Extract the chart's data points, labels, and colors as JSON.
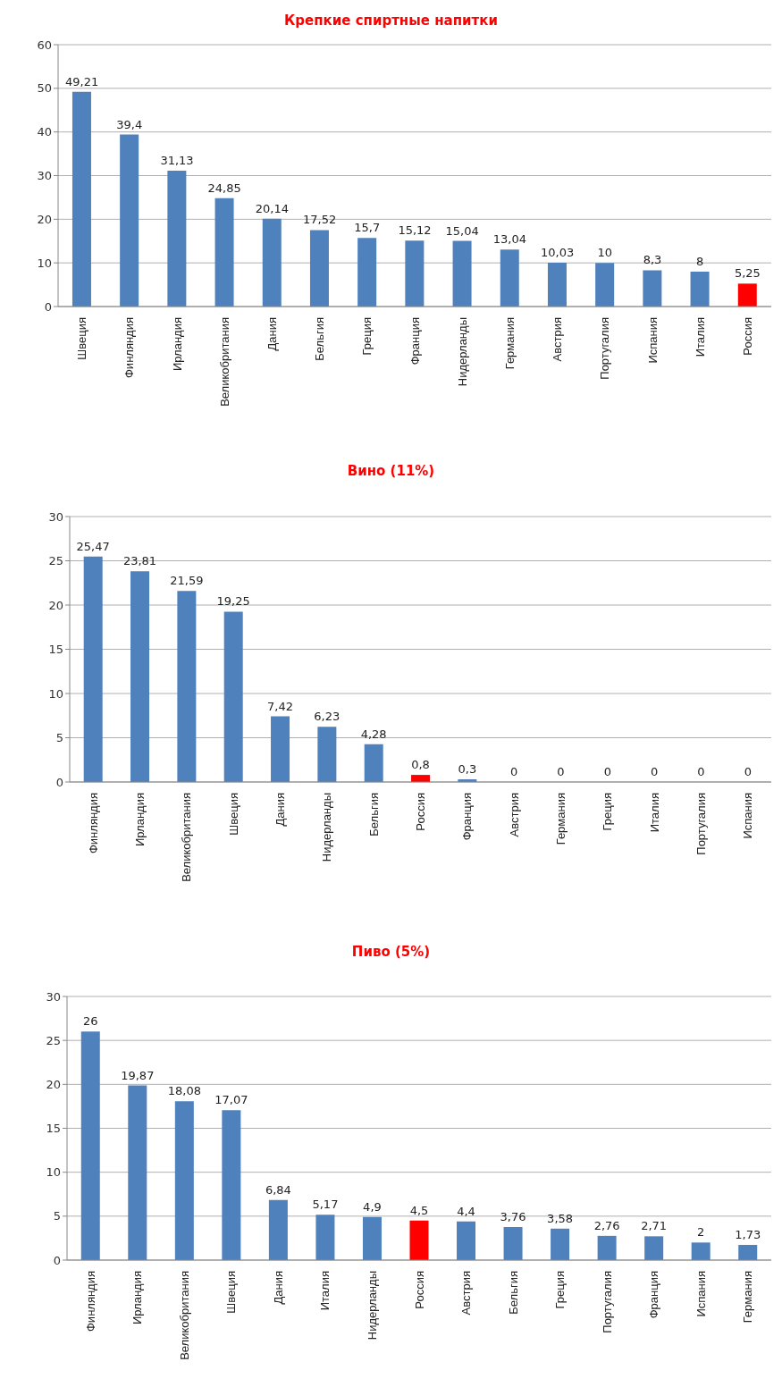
{
  "chart_data": [
    {
      "type": "bar",
      "title": "Крепкие спиртные напитки",
      "categories": [
        "Швеция",
        "Финляндия",
        "Ирландия",
        "Великобритания",
        "Дания",
        "Бельгия",
        "Греция",
        "Франция",
        "Нидерланды",
        "Германия",
        "Австрия",
        "Португалия",
        "Испания",
        "Италия",
        "Россия"
      ],
      "values": [
        49.21,
        39.4,
        31.13,
        24.85,
        20.14,
        17.52,
        15.7,
        15.12,
        15.04,
        13.04,
        10.03,
        10,
        8.3,
        8,
        5.25
      ],
      "colors": [
        "#4f81bd",
        "#4f81bd",
        "#4f81bd",
        "#4f81bd",
        "#4f81bd",
        "#4f81bd",
        "#4f81bd",
        "#4f81bd",
        "#4f81bd",
        "#4f81bd",
        "#4f81bd",
        "#4f81bd",
        "#4f81bd",
        "#4f81bd",
        "#ff0000"
      ],
      "value_labels": [
        "49,21",
        "39,4",
        "31,13",
        "24,85",
        "20,14",
        "17,52",
        "15,7",
        "15,12",
        "15,04",
        "13,04",
        "10,03",
        "10",
        "8,3",
        "8",
        "5,25"
      ],
      "ylim": [
        0,
        60
      ],
      "yticks": [
        0,
        10,
        20,
        30,
        40,
        50,
        60
      ],
      "grid": "y"
    },
    {
      "type": "bar",
      "title": "Вино (11%)",
      "categories": [
        "Финляндия",
        "Ирландия",
        "Великобритания",
        "Швеция",
        "Дания",
        "Нидерланды",
        "Бельгия",
        "Россия",
        "Франция",
        "Австрия",
        "Германия",
        "Греция",
        "Италия",
        "Португалия",
        "Испания"
      ],
      "values": [
        25.47,
        23.81,
        21.59,
        19.25,
        7.42,
        6.23,
        4.28,
        0.8,
        0.3,
        0,
        0,
        0,
        0,
        0,
        0
      ],
      "colors": [
        "#4f81bd",
        "#4f81bd",
        "#4f81bd",
        "#4f81bd",
        "#4f81bd",
        "#4f81bd",
        "#4f81bd",
        "#ff0000",
        "#4f81bd",
        "#4f81bd",
        "#4f81bd",
        "#4f81bd",
        "#4f81bd",
        "#4f81bd",
        "#4f81bd"
      ],
      "value_labels": [
        "25,47",
        "23,81",
        "21,59",
        "19,25",
        "7,42",
        "6,23",
        "4,28",
        "0,8",
        "0,3",
        "0",
        "0",
        "0",
        "0",
        "0",
        "0"
      ],
      "ylim": [
        0,
        30
      ],
      "yticks": [
        0,
        5,
        10,
        15,
        20,
        25,
        30
      ],
      "grid": "y"
    },
    {
      "type": "bar",
      "title": "Пиво (5%)",
      "categories": [
        "Финляндия",
        "Ирландия",
        "Великобритания",
        "Швеция",
        "Дания",
        "Италия",
        "Нидерланды",
        "Россия",
        "Австрия",
        "Бельгия",
        "Греция",
        "Португалия",
        "Франция",
        "Испания",
        "Германия"
      ],
      "values": [
        26,
        19.87,
        18.08,
        17.07,
        6.84,
        5.17,
        4.9,
        4.5,
        4.4,
        3.76,
        3.58,
        2.76,
        2.71,
        2,
        1.73
      ],
      "colors": [
        "#4f81bd",
        "#4f81bd",
        "#4f81bd",
        "#4f81bd",
        "#4f81bd",
        "#4f81bd",
        "#4f81bd",
        "#ff0000",
        "#4f81bd",
        "#4f81bd",
        "#4f81bd",
        "#4f81bd",
        "#4f81bd",
        "#4f81bd",
        "#4f81bd"
      ],
      "value_labels": [
        "26",
        "19,87",
        "18,08",
        "17,07",
        "6,84",
        "5,17",
        "4,9",
        "4,5",
        "4,4",
        "3,76",
        "3,58",
        "2,76",
        "2,71",
        "2",
        "1,73"
      ],
      "ylim": [
        0,
        30
      ],
      "yticks": [
        0,
        5,
        10,
        15,
        20,
        25,
        30
      ],
      "grid": "y"
    }
  ]
}
